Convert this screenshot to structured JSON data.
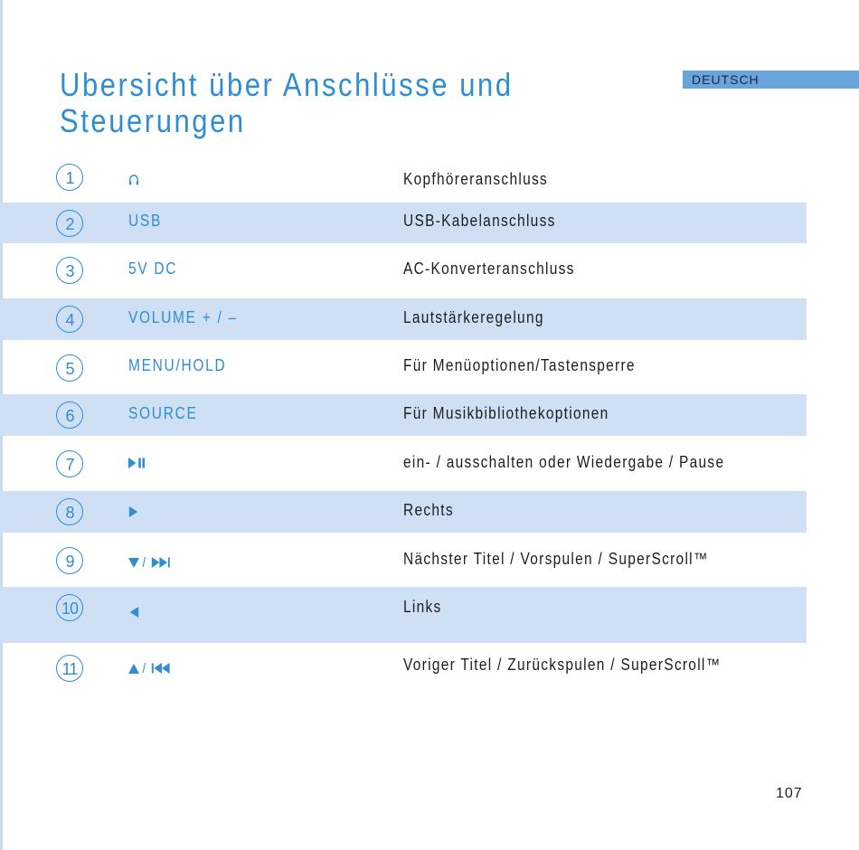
{
  "language_tab": "DEUTSCH",
  "title_line1": "Ubersicht über Anschlüsse und",
  "title_line2": "Steuerungen",
  "rows": [
    {
      "num": "1",
      "control": "",
      "control_icon": "headphone-icon",
      "description": "Kopfhöreranschluss"
    },
    {
      "num": "2",
      "control": "USB",
      "description": "USB-Kabelanschluss"
    },
    {
      "num": "3",
      "control": "5V DC",
      "description": "AC-Konverteranschluss"
    },
    {
      "num": "4",
      "control": "VOLUME + / –",
      "description": "Lautstärkeregelung"
    },
    {
      "num": "5",
      "control": "MENU/HOLD",
      "description": "Für Menüoptionen/Tastensperre"
    },
    {
      "num": "6",
      "control": "SOURCE",
      "description": "Für Musikbibliothekoptionen"
    },
    {
      "num": "7",
      "control": "▶II",
      "control_icon": "play-pause-icon",
      "description": "ein- / ausschalten oder Wiedergabe / Pause"
    },
    {
      "num": "8",
      "control": "▶",
      "control_icon": "right-arrow-icon",
      "description": "Rechts"
    },
    {
      "num": "9",
      "control": "▼/ ▶▶I",
      "control_icon": "down-next-icon",
      "description": "Nächster Titel / Vorspulen / SuperScroll™"
    },
    {
      "num": "10",
      "control": "◀",
      "control_icon": "left-arrow-icon",
      "description": "Links"
    },
    {
      "num": "11",
      "control": "▲/ I◀◀",
      "control_icon": "up-previous-icon",
      "description": "Voriger Titel / Zurückspulen / SuperScroll™"
    }
  ],
  "page_number": "107",
  "colors": {
    "accent": "#2e8ed1",
    "band": "#cfe0f5",
    "tab": "#6aa4dc"
  }
}
